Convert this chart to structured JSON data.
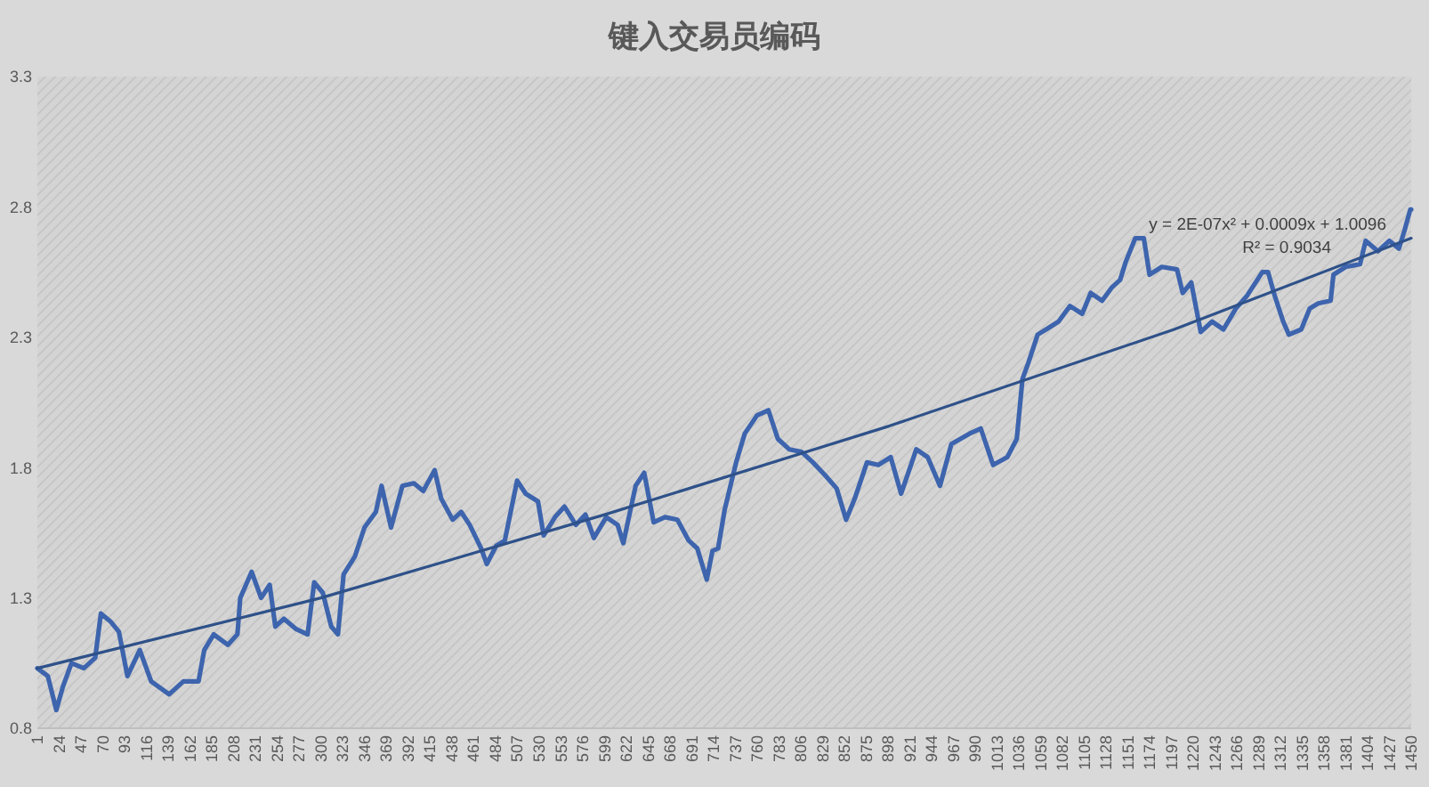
{
  "chart_data": {
    "type": "line",
    "title": "键入交易员编码",
    "series": [
      {
        "color": "#3d64ad",
        "x": [
          1,
          12,
          21,
          28,
          37,
          50,
          62,
          68,
          78,
          87,
          96,
          109,
          121,
          140,
          155,
          171,
          177,
          187,
          202,
          212,
          215,
          221,
          227,
          237,
          246,
          252,
          261,
          274,
          286,
          293,
          302,
          311,
          318,
          324,
          336,
          346,
          358,
          364,
          374,
          386,
          398,
          408,
          420,
          427,
          439,
          448,
          457,
          469,
          475,
          485,
          494,
          507,
          516,
          529,
          535,
          547,
          557,
          569,
          579,
          588,
          601,
          613,
          619,
          632,
          641,
          651,
          663,
          676,
          688,
          697,
          707,
          713,
          719,
          726,
          738,
          747,
          760,
          772,
          782,
          794,
          807,
          819,
          832,
          844,
          854,
          863,
          876,
          888,
          901,
          912,
          928,
          940,
          953,
          965,
          984,
          996,
          1009,
          1024,
          1034,
          1040,
          1046,
          1056,
          1065,
          1078,
          1090,
          1103,
          1112,
          1124,
          1134,
          1143,
          1149,
          1159,
          1168,
          1174,
          1187,
          1203,
          1209,
          1218,
          1228,
          1240,
          1252,
          1265,
          1277,
          1293,
          1299,
          1306,
          1315,
          1321,
          1334,
          1343,
          1352,
          1365,
          1368,
          1381,
          1396,
          1402,
          1415,
          1427,
          1437,
          1443,
          1449,
          1450
        ],
        "values": [
          1.03,
          1.0,
          0.87,
          0.96,
          1.05,
          1.03,
          1.07,
          1.24,
          1.21,
          1.17,
          1.0,
          1.1,
          0.98,
          0.93,
          0.98,
          0.98,
          1.1,
          1.16,
          1.12,
          1.16,
          1.3,
          1.35,
          1.4,
          1.3,
          1.35,
          1.19,
          1.22,
          1.18,
          1.16,
          1.36,
          1.32,
          1.19,
          1.16,
          1.39,
          1.46,
          1.57,
          1.63,
          1.73,
          1.57,
          1.73,
          1.74,
          1.71,
          1.79,
          1.68,
          1.6,
          1.63,
          1.58,
          1.49,
          1.43,
          1.5,
          1.52,
          1.75,
          1.7,
          1.67,
          1.54,
          1.61,
          1.65,
          1.58,
          1.62,
          1.53,
          1.61,
          1.58,
          1.51,
          1.73,
          1.78,
          1.59,
          1.61,
          1.6,
          1.52,
          1.49,
          1.37,
          1.48,
          1.49,
          1.64,
          1.82,
          1.93,
          2.0,
          2.02,
          1.91,
          1.87,
          1.86,
          1.82,
          1.77,
          1.72,
          1.6,
          1.68,
          1.82,
          1.81,
          1.84,
          1.7,
          1.87,
          1.84,
          1.73,
          1.89,
          1.93,
          1.95,
          1.81,
          1.84,
          1.91,
          2.14,
          2.2,
          2.31,
          2.33,
          2.36,
          2.42,
          2.39,
          2.47,
          2.44,
          2.49,
          2.52,
          2.59,
          2.68,
          2.68,
          2.54,
          2.57,
          2.56,
          2.47,
          2.51,
          2.32,
          2.36,
          2.33,
          2.41,
          2.46,
          2.55,
          2.55,
          2.46,
          2.36,
          2.31,
          2.33,
          2.41,
          2.43,
          2.44,
          2.54,
          2.57,
          2.58,
          2.67,
          2.63,
          2.67,
          2.64,
          2.71,
          2.79,
          2.79
        ]
      },
      {
        "color": "#2e5189",
        "x": [
          1,
          300,
          600,
          900,
          1200,
          1450
        ],
        "values": [
          1.03,
          1.3,
          1.62,
          1.96,
          2.33,
          2.68
        ]
      }
    ],
    "xlim": [
      1,
      1450
    ],
    "xticks": [
      1,
      24,
      47,
      70,
      93,
      116,
      139,
      162,
      185,
      208,
      231,
      254,
      277,
      300,
      323,
      346,
      369,
      392,
      415,
      438,
      461,
      484,
      507,
      530,
      553,
      576,
      599,
      622,
      645,
      668,
      691,
      714,
      737,
      760,
      783,
      806,
      829,
      852,
      875,
      898,
      921,
      944,
      967,
      990,
      1013,
      1036,
      1059,
      1082,
      1105,
      1128,
      1151,
      1174,
      1197,
      1220,
      1243,
      1266,
      1289,
      1312,
      1335,
      1358,
      1381,
      1404,
      1427,
      1450
    ],
    "ylim": [
      0.8,
      3.3
    ],
    "yticks": [
      0.8,
      1.3,
      1.8,
      2.3,
      2.8,
      3.3
    ],
    "annotations": [
      "y = 2E-07x² + 0.0009x + 1.0096",
      "R² = 0.9034"
    ]
  }
}
